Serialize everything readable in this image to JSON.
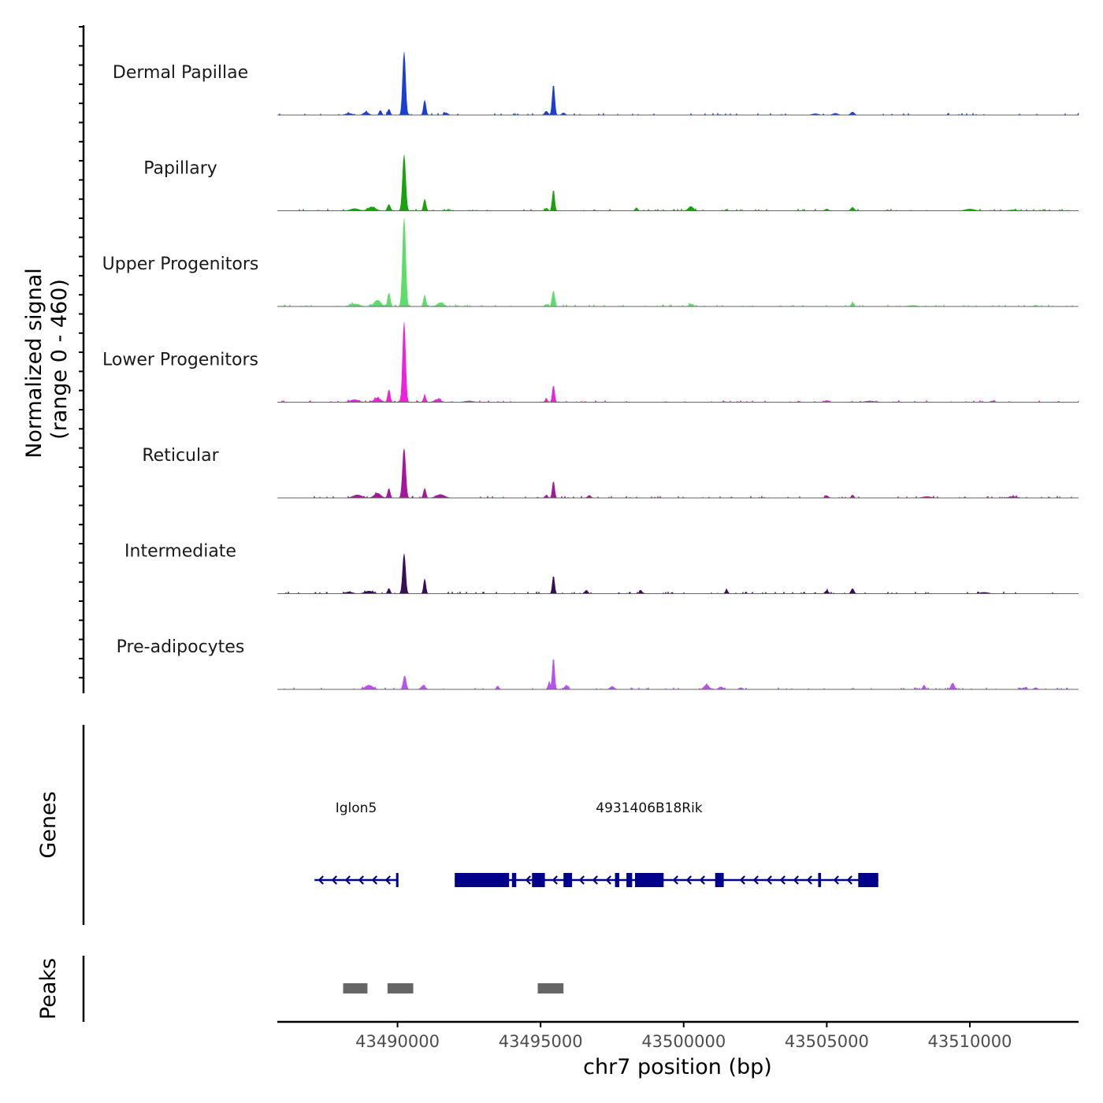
{
  "chart_data": {
    "type": "area",
    "title": "",
    "signal_axis_label": "Normalized signal",
    "signal_range_label": "(range 0 - 460)",
    "signal_range": [
      0,
      460
    ],
    "xlabel": "chr7 position (bp)",
    "xlim": [
      43485800,
      43513800
    ],
    "x_ticks": [
      43490000,
      43495000,
      43500000,
      43505000,
      43510000
    ],
    "x_tick_labels": [
      "43490000",
      "43495000",
      "43500000",
      "43505000",
      "43510000"
    ],
    "genes_label": "Genes",
    "peaks_label": "Peaks",
    "series": [
      {
        "name": "Dermal Papillae",
        "color": "#1b3fd6",
        "peaks": [
          [
            43490230,
            300,
            70
          ],
          [
            43490950,
            70,
            60
          ],
          [
            43489700,
            28,
            60
          ],
          [
            43489400,
            22,
            60
          ],
          [
            43488900,
            14,
            120
          ],
          [
            43488300,
            8,
            150
          ],
          [
            43495450,
            145,
            60
          ],
          [
            43495200,
            18,
            80
          ],
          [
            43495800,
            10,
            80
          ],
          [
            43491700,
            10,
            90
          ],
          [
            43505900,
            14,
            90
          ],
          [
            43505300,
            8,
            120
          ],
          [
            43504600,
            6,
            150
          ]
        ]
      },
      {
        "name": "Papillary",
        "color": "#1aa10e",
        "peaks": [
          [
            43490230,
            265,
            75
          ],
          [
            43490950,
            55,
            60
          ],
          [
            43489700,
            30,
            70
          ],
          [
            43489100,
            18,
            180
          ],
          [
            43488500,
            10,
            200
          ],
          [
            43495450,
            100,
            55
          ],
          [
            43495200,
            12,
            70
          ],
          [
            43500250,
            20,
            120
          ],
          [
            43498350,
            14,
            60
          ],
          [
            43505900,
            16,
            80
          ],
          [
            43505000,
            8,
            80
          ],
          [
            43510000,
            8,
            220
          ],
          [
            43511500,
            4,
            200
          ]
        ]
      },
      {
        "name": "Upper Progenitors",
        "color": "#5fdc6c",
        "peaks": [
          [
            43490230,
            420,
            75
          ],
          [
            43490950,
            50,
            60
          ],
          [
            43489700,
            65,
            60
          ],
          [
            43489300,
            30,
            160
          ],
          [
            43488500,
            12,
            220
          ],
          [
            43491500,
            18,
            150
          ],
          [
            43495450,
            75,
            60
          ],
          [
            43495200,
            10,
            70
          ],
          [
            43500250,
            12,
            80
          ],
          [
            43505900,
            16,
            70
          ],
          [
            43508000,
            5,
            200
          ],
          [
            43512300,
            6,
            80
          ]
        ]
      },
      {
        "name": "Lower Progenitors",
        "color": "#ee22dd",
        "peaks": [
          [
            43490230,
            380,
            70
          ],
          [
            43490950,
            30,
            60
          ],
          [
            43489700,
            60,
            60
          ],
          [
            43489300,
            20,
            160
          ],
          [
            43488500,
            12,
            200
          ],
          [
            43491400,
            14,
            150
          ],
          [
            43495450,
            80,
            55
          ],
          [
            43495200,
            12,
            70
          ],
          [
            43492500,
            6,
            200
          ],
          [
            43505000,
            8,
            100
          ],
          [
            43506500,
            6,
            200
          ],
          [
            43510800,
            6,
            100
          ]
        ]
      },
      {
        "name": "Reticular",
        "color": "#a5179a",
        "peaks": [
          [
            43490230,
            235,
            75
          ],
          [
            43490950,
            45,
            60
          ],
          [
            43489700,
            45,
            60
          ],
          [
            43489300,
            22,
            160
          ],
          [
            43488600,
            14,
            220
          ],
          [
            43491500,
            16,
            200
          ],
          [
            43495450,
            80,
            55
          ],
          [
            43495200,
            12,
            70
          ],
          [
            43496700,
            12,
            80
          ],
          [
            43505000,
            10,
            80
          ],
          [
            43505900,
            14,
            60
          ],
          [
            43508500,
            6,
            200
          ],
          [
            43511500,
            6,
            200
          ]
        ]
      },
      {
        "name": "Intermediate",
        "color": "#3a0e57",
        "peaks": [
          [
            43490230,
            190,
            70
          ],
          [
            43490950,
            70,
            55
          ],
          [
            43489700,
            25,
            60
          ],
          [
            43489000,
            12,
            200
          ],
          [
            43488300,
            8,
            180
          ],
          [
            43495450,
            85,
            55
          ],
          [
            43496600,
            16,
            70
          ],
          [
            43498500,
            16,
            60
          ],
          [
            43501500,
            18,
            60
          ],
          [
            43505000,
            14,
            80
          ],
          [
            43505900,
            24,
            70
          ],
          [
            43510500,
            6,
            200
          ]
        ]
      },
      {
        "name": "Pre-adipocytes",
        "color": "#b653ef",
        "peaks": [
          [
            43490250,
            65,
            70
          ],
          [
            43489000,
            20,
            180
          ],
          [
            43490900,
            18,
            100
          ],
          [
            43493500,
            16,
            60
          ],
          [
            43495450,
            150,
            55
          ],
          [
            43495300,
            30,
            60
          ],
          [
            43495900,
            20,
            80
          ],
          [
            43497500,
            14,
            100
          ],
          [
            43500800,
            22,
            120
          ],
          [
            43501300,
            12,
            100
          ],
          [
            43502000,
            8,
            80
          ],
          [
            43508400,
            20,
            60
          ],
          [
            43509400,
            30,
            80
          ],
          [
            43511900,
            8,
            100
          ],
          [
            43512300,
            8,
            80
          ]
        ]
      }
    ],
    "genes": [
      {
        "name": "Iglon5",
        "strand": "-",
        "start": 43487100,
        "end": 43490000,
        "exons": [
          [
            43489950,
            43490030
          ]
        ]
      },
      {
        "name": "4931406B18Rik",
        "strand": "-",
        "start": 43492000,
        "end": 43506800,
        "exons": [
          [
            43492000,
            43493900
          ],
          [
            43494000,
            43494150
          ],
          [
            43494700,
            43495150
          ],
          [
            43495800,
            43496100
          ],
          [
            43497600,
            43497750
          ],
          [
            43498000,
            43498200
          ],
          [
            43498300,
            43499300
          ],
          [
            43501100,
            43501400
          ],
          [
            43504700,
            43504800
          ],
          [
            43506100,
            43506800
          ]
        ]
      }
    ],
    "peak_regions": [
      [
        43488100,
        43488950
      ],
      [
        43489650,
        43490550
      ],
      [
        43494900,
        43495800
      ]
    ]
  }
}
